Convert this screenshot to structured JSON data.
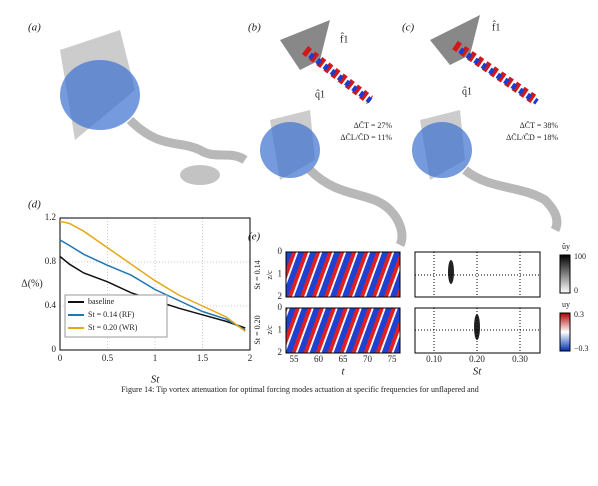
{
  "panels": {
    "a": "(a)",
    "b": "(b)",
    "c": "(c)",
    "d": "(d)",
    "e": "(e)"
  },
  "annotations": {
    "b_f": "f̂1",
    "b_q": "q̂1",
    "b_ct": "ΔC̄T = 27%",
    "b_cl": "ΔC̄L/C̄D = 11%",
    "c_f": "f̂1",
    "c_q": "q̂1",
    "c_ct": "ΔC̄T = 38%",
    "c_cl": "ΔC̄L/C̄D = 18%"
  },
  "chart_data": {
    "type": "line",
    "xlabel": "St",
    "ylabel": "Δ(%)",
    "x": [
      0,
      0.1,
      0.25,
      0.5,
      0.75,
      1.0,
      1.25,
      1.5,
      1.75,
      1.95
    ],
    "series": [
      {
        "name": "baseline",
        "color": "#111111",
        "values": [
          0.85,
          0.78,
          0.7,
          0.62,
          0.52,
          0.45,
          0.38,
          0.32,
          0.26,
          0.2
        ]
      },
      {
        "name": "St = 0.14 (RF)",
        "color": "#1f77b4",
        "values": [
          1.0,
          0.95,
          0.87,
          0.77,
          0.68,
          0.55,
          0.45,
          0.35,
          0.28,
          0.18
        ]
      },
      {
        "name": "St = 0.20 (WR)",
        "color": "#e6a817",
        "values": [
          1.17,
          1.15,
          1.08,
          0.93,
          0.78,
          0.63,
          0.5,
          0.4,
          0.3,
          0.17
        ]
      }
    ],
    "xlim": [
      0,
      2
    ],
    "ylim": [
      0,
      1.2
    ],
    "xticks": [
      0,
      0.5,
      1,
      1.5,
      2
    ],
    "yticks": [
      0,
      0.4,
      0.8,
      1.2
    ],
    "grid": true,
    "legend": "lower-left"
  },
  "panel_e": {
    "row_labels": [
      "St = 0.14",
      "St = 0.20"
    ],
    "ylabel": "z/c",
    "yticks": [
      "0",
      "1",
      "2"
    ],
    "t_ticks": [
      "55",
      "60",
      "65",
      "70",
      "75"
    ],
    "t_label": "t",
    "st_ticks": [
      "0.10",
      "0.20",
      "0.30"
    ],
    "st_label": "St",
    "cbar1": {
      "title": "ûy",
      "max": "100",
      "min": "0"
    },
    "cbar2": {
      "title": "uy",
      "max": "0.3",
      "min": "−0.3"
    }
  },
  "caption": "Figure 14: Tip vortex attenuation for optimal forcing modes actuation at specific frequencies for unflapered and"
}
